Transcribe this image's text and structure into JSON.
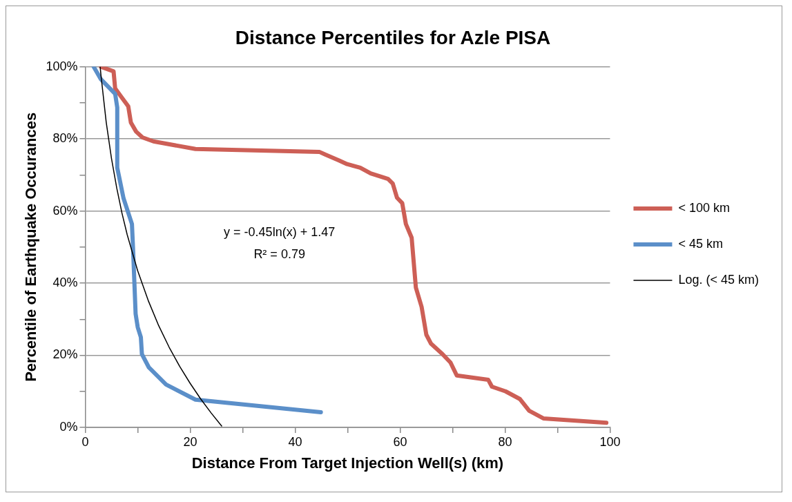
{
  "chart_data": {
    "type": "line",
    "title": "Distance Percentiles for Azle PISA",
    "xlabel": "Distance From Target Injection Well(s) (km)",
    "ylabel": "Percentile of Earthquake Occurances",
    "series": [
      {
        "name": "< 100 km",
        "color": "#cd5f56",
        "x": [
          3,
          5.4,
          5.7,
          6.7,
          8.2,
          8.7,
          9.7,
          10.9,
          13,
          21,
          44.6,
          45.8,
          48.4,
          49.9,
          52.4,
          54.4,
          57.7,
          58.6,
          59.4,
          60.4,
          61.1,
          62.2,
          63,
          64.1,
          65,
          65.9,
          68.1,
          69.6,
          70.8,
          76.8,
          77.5,
          80.1,
          82.8,
          84.6,
          87.3,
          99.3
        ],
        "values": [
          100,
          98.7,
          94,
          92,
          89,
          84.5,
          82,
          80.4,
          79.3,
          77.2,
          76.4,
          75.6,
          74,
          73,
          72,
          70.4,
          68.9,
          67.6,
          63.7,
          62.2,
          56.4,
          52.6,
          38.8,
          33.4,
          25.7,
          23.2,
          20.3,
          18,
          14.4,
          13.2,
          11.3,
          10,
          7.9,
          4.6,
          2.5,
          1.3
        ]
      },
      {
        "name": "< 45 km",
        "color": "#5b8fc9",
        "x": [
          1.6,
          3,
          5.7,
          6.1,
          6.1,
          7.3,
          8.9,
          9.1,
          9.6,
          10,
          10.6,
          10.8,
          12.1,
          15.4,
          21,
          44.9
        ],
        "values": [
          100,
          96.5,
          92.5,
          88.7,
          72,
          63.5,
          56.4,
          50,
          31.5,
          27.8,
          25,
          20.3,
          16.7,
          11.9,
          7.7,
          4.2
        ]
      },
      {
        "name": "Log. (< 45 km)",
        "type": "line",
        "color": "#000000",
        "x": [
          2.85,
          3,
          4,
          5,
          6,
          7,
          8,
          10,
          12,
          14,
          16,
          18,
          20,
          22,
          24,
          26
        ],
        "values": [
          99.9,
          97.6,
          84.6,
          74.6,
          66.4,
          59.4,
          53.4,
          43.4,
          35.2,
          28.2,
          22.2,
          16.9,
          12.2,
          7.9,
          4,
          0.4
        ]
      }
    ],
    "xlim": [
      0,
      100
    ],
    "xticks": [
      0,
      {
        "value": 10,
        "label": null
      },
      20,
      {
        "value": 30,
        "label": null
      },
      40,
      {
        "value": 50,
        "label": null
      },
      60,
      {
        "value": 70,
        "label": null
      },
      80,
      {
        "value": 90,
        "label": null
      },
      100
    ],
    "ylim": [
      0,
      100
    ],
    "yticks": [
      {
        "value": 0,
        "label": "0%"
      },
      {
        "value": 10,
        "label": null
      },
      {
        "value": 20,
        "label": "20%"
      },
      {
        "value": 30,
        "label": null
      },
      {
        "value": 40,
        "label": "40%"
      },
      {
        "value": 50,
        "label": null
      },
      {
        "value": 60,
        "label": "60%"
      },
      {
        "value": 70,
        "label": null
      },
      {
        "value": 80,
        "label": "80%"
      },
      {
        "value": 90,
        "label": null
      },
      {
        "value": 100,
        "label": "100%"
      }
    ],
    "grid": "y",
    "legend": "right",
    "marker": "none",
    "line_style": "solid",
    "annotations": [
      "y = -0.45ln(x) + 1.47",
      "R² = 0.79"
    ]
  }
}
